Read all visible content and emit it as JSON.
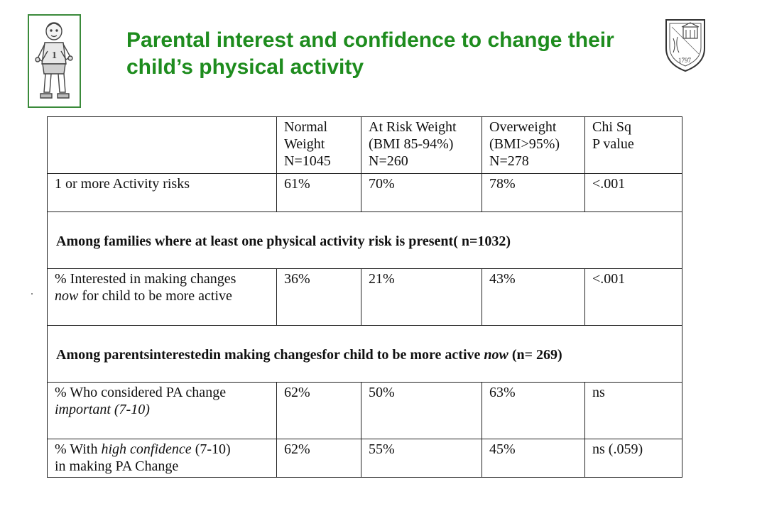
{
  "title": "Parental interest and confidence to change their child’s physical activity",
  "colors": {
    "title": "#1e8c1e",
    "border": "#3a8a3a"
  },
  "icons": {
    "mascot": "child-runner-icon",
    "seal": "school-seal-icon"
  },
  "seal_year": "1797",
  "table": {
    "headers": [
      {
        "line1": "",
        "line2": "",
        "line3": ""
      },
      {
        "line1": "Normal",
        "line2": "Weight",
        "line3": "N=1045"
      },
      {
        "line1": "At Risk Weight",
        "line2": "(BMI 85-94%)",
        "line3": "N=260"
      },
      {
        "line1": "Overweight",
        "line2": "(BMI>95%)",
        "line3": "N=278"
      },
      {
        "line1": "Chi Sq",
        "line2": "P value",
        "line3": ""
      }
    ],
    "row1": {
      "label": "1 or more Activity risks",
      "normal": "61%",
      "at_risk": "70%",
      "overweight": "78%",
      "p": "<.001"
    },
    "section1": "Among families where at least one physical activity risk is present( n=1032)",
    "row2": {
      "label_a": "% Interested in making changes",
      "label_b_em": "now",
      "label_b_rest": " for child to be more active",
      "normal": "36%",
      "at_risk": "21%",
      "overweight": "43%",
      "p": "<.001"
    },
    "section2": {
      "prefix": "Among parentsinterestedin making changesfor child to be more active ",
      "em": "now",
      "suffix": " (n= 269)"
    },
    "row3": {
      "label_a": "% Who considered PA change",
      "label_b_em": "important (7-10)",
      "normal": "62%",
      "at_risk": "50%",
      "overweight": "63%",
      "p": "ns"
    },
    "row4": {
      "label_a_pre": "% With ",
      "label_a_em": "high confidence",
      "label_a_post": " (7-10)",
      "label_b": "in making PA Change",
      "normal": "62%",
      "at_risk": "55%",
      "overweight": "45%",
      "p": "ns (.059)"
    }
  }
}
